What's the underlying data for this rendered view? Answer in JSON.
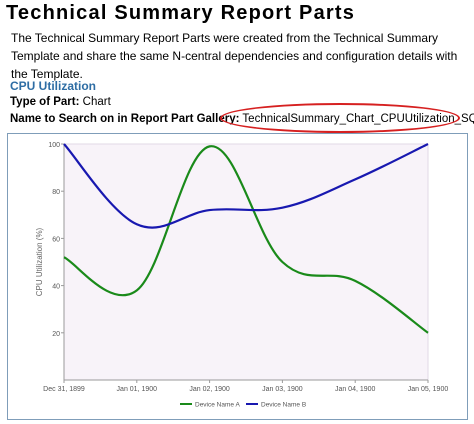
{
  "page": {
    "title": "Technical Summary Report Parts",
    "intro": "The Technical Summary Report Parts were created from the Technical Summary Template and share the same N-central dependencies and configuration details with the Template.",
    "section_heading": "CPU Utilization",
    "type_label": "Type of Part:",
    "type_value": "Chart",
    "search_label": "Name to Search on in Report Part Gallery:",
    "search_value": "TechnicalSummary_Chart_CPUUtilization_SQL"
  },
  "colors": {
    "heading": "#2e6da4",
    "highlight": "#d62020",
    "plot_background": "#f8f3f9",
    "series_a": "#1a8a1a",
    "series_b": "#1818b0"
  },
  "chart_data": {
    "type": "line",
    "title": "",
    "xlabel": "",
    "ylabel": "CPU Utilization (%)",
    "x_categories": [
      "Dec 31, 1899",
      "Jan 01, 1900",
      "Jan 02, 1900",
      "Jan 03, 1900",
      "Jan 04, 1900",
      "Jan 05, 1900"
    ],
    "ylim": [
      0,
      100
    ],
    "yticks": [
      20,
      40,
      60,
      80,
      100
    ],
    "grid": false,
    "legend_position": "bottom",
    "series": [
      {
        "name": "Device Name A",
        "color": "#1a8a1a",
        "values": [
          52,
          38,
          99,
          50,
          42,
          20
        ]
      },
      {
        "name": "Device Name B",
        "color": "#1818b0",
        "values": [
          100,
          66,
          72,
          73,
          85,
          100
        ]
      }
    ]
  }
}
